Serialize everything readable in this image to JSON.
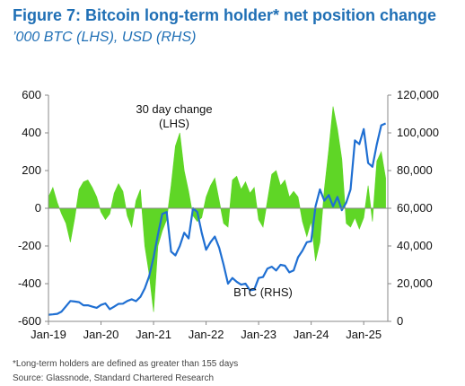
{
  "title": "Figure 7: Bitcoin long-term holder* net position change",
  "subtitle": "’000 BTC (LHS), USD (RHS)",
  "footnotes": [
    "*Long-term holders are defined as greater than 155 days",
    "Source: Glassnode, Standard Chartered Research"
  ],
  "chart_data": {
    "type": "area",
    "dual_axis": true,
    "x_tick_labels": [
      "Jan-19",
      "Jan-20",
      "Jan-21",
      "Jan-22",
      "Jan-23",
      "Jan-24",
      "Jan-25"
    ],
    "x_range": [
      "2019-01",
      "2025-06"
    ],
    "y_left": {
      "min": -600,
      "max": 600,
      "ticks": [
        600,
        400,
        200,
        0,
        -200,
        -400,
        -600
      ]
    },
    "y_right": {
      "min": 0,
      "max": 120000,
      "ticks": [
        "120,000",
        "100,000",
        "80,000",
        "60,000",
        "40,000",
        "20,000",
        "0"
      ],
      "values": [
        120000,
        100000,
        80000,
        60000,
        40000,
        20000,
        0
      ]
    },
    "annotations": [
      {
        "text_lines": [
          "30 day change",
          "(LHS)"
        ]
      },
      {
        "text_lines": [
          "BTC (RHS)"
        ]
      }
    ],
    "colors": {
      "area": "#5fd626",
      "line": "#1f6fd2"
    },
    "series": [
      {
        "name": "30 day change",
        "axis": "left",
        "kind": "area",
        "x": [
          "2019-01",
          "2019-02",
          "2019-03",
          "2019-04",
          "2019-05",
          "2019-06",
          "2019-07",
          "2019-08",
          "2019-09",
          "2019-10",
          "2019-11",
          "2019-12",
          "2020-01",
          "2020-02",
          "2020-03",
          "2020-04",
          "2020-05",
          "2020-06",
          "2020-07",
          "2020-08",
          "2020-09",
          "2020-10",
          "2020-11",
          "2020-12",
          "2021-01",
          "2021-02",
          "2021-03",
          "2021-04",
          "2021-05",
          "2021-06",
          "2021-07",
          "2021-08",
          "2021-09",
          "2021-10",
          "2021-11",
          "2021-12",
          "2022-01",
          "2022-02",
          "2022-03",
          "2022-04",
          "2022-05",
          "2022-06",
          "2022-07",
          "2022-08",
          "2022-09",
          "2022-10",
          "2022-11",
          "2022-12",
          "2023-01",
          "2023-02",
          "2023-03",
          "2023-04",
          "2023-05",
          "2023-06",
          "2023-07",
          "2023-08",
          "2023-09",
          "2023-10",
          "2023-11",
          "2023-12",
          "2024-01",
          "2024-02",
          "2024-03",
          "2024-04",
          "2024-05",
          "2024-06",
          "2024-07",
          "2024-08",
          "2024-09",
          "2024-10",
          "2024-11",
          "2024-12",
          "2025-01",
          "2025-02",
          "2025-03",
          "2025-04",
          "2025-05",
          "2025-06"
        ],
        "values": [
          60,
          110,
          30,
          -30,
          -80,
          -180,
          -50,
          100,
          140,
          150,
          110,
          60,
          -20,
          -60,
          -30,
          80,
          130,
          90,
          -40,
          -100,
          40,
          100,
          -200,
          -350,
          -550,
          -200,
          -120,
          -60,
          120,
          330,
          400,
          200,
          90,
          -40,
          -70,
          -50,
          60,
          120,
          160,
          40,
          -80,
          -100,
          150,
          170,
          100,
          140,
          80,
          110,
          -60,
          -100,
          40,
          180,
          200,
          120,
          150,
          60,
          90,
          60,
          -70,
          -150,
          -70,
          -280,
          -180,
          100,
          310,
          540,
          420,
          260,
          -80,
          -100,
          -50,
          -110,
          -50,
          120,
          -70,
          250,
          300,
          160
        ]
      },
      {
        "name": "BTC (RHS)",
        "axis": "right",
        "kind": "line",
        "x": [
          "2019-01",
          "2019-02",
          "2019-03",
          "2019-04",
          "2019-05",
          "2019-06",
          "2019-07",
          "2019-08",
          "2019-09",
          "2019-10",
          "2019-11",
          "2019-12",
          "2020-01",
          "2020-02",
          "2020-03",
          "2020-04",
          "2020-05",
          "2020-06",
          "2020-07",
          "2020-08",
          "2020-09",
          "2020-10",
          "2020-11",
          "2020-12",
          "2021-01",
          "2021-02",
          "2021-03",
          "2021-04",
          "2021-05",
          "2021-06",
          "2021-07",
          "2021-08",
          "2021-09",
          "2021-10",
          "2021-11",
          "2021-12",
          "2022-01",
          "2022-02",
          "2022-03",
          "2022-04",
          "2022-05",
          "2022-06",
          "2022-07",
          "2022-08",
          "2022-09",
          "2022-10",
          "2022-11",
          "2022-12",
          "2023-01",
          "2023-02",
          "2023-03",
          "2023-04",
          "2023-05",
          "2023-06",
          "2023-07",
          "2023-08",
          "2023-09",
          "2023-10",
          "2023-11",
          "2023-12",
          "2024-01",
          "2024-02",
          "2024-03",
          "2024-04",
          "2024-05",
          "2024-06",
          "2024-07",
          "2024-08",
          "2024-09",
          "2024-10",
          "2024-11",
          "2024-12",
          "2025-01",
          "2025-02",
          "2025-03",
          "2025-04",
          "2025-05",
          "2025-06"
        ],
        "values": [
          3500,
          3700,
          4000,
          5200,
          8000,
          10800,
          10500,
          10200,
          8500,
          8500,
          7800,
          7200,
          8700,
          9500,
          6500,
          7800,
          9300,
          9400,
          10800,
          11700,
          10700,
          13000,
          17500,
          24000,
          34000,
          46000,
          57000,
          58000,
          37000,
          35000,
          40000,
          47000,
          44000,
          60000,
          58000,
          47000,
          38000,
          42000,
          45000,
          39000,
          30000,
          20000,
          23000,
          21000,
          19500,
          20000,
          16500,
          16800,
          23000,
          23500,
          28000,
          29000,
          27000,
          30000,
          29500,
          26000,
          27000,
          34000,
          37500,
          42000,
          42500,
          61000,
          70000,
          64000,
          67000,
          61000,
          66000,
          59000,
          63000,
          70000,
          96000,
          94000,
          102000,
          84000,
          82000,
          94000,
          104000,
          105000
        ]
      }
    ]
  }
}
